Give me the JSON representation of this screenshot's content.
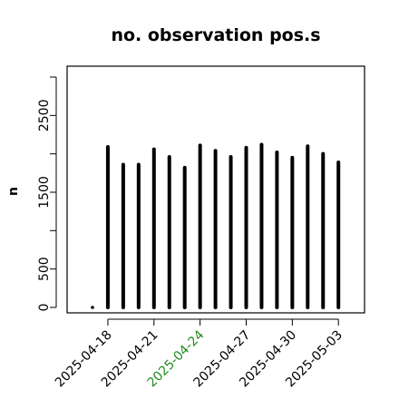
{
  "chart_data": {
    "type": "bar",
    "title": "no. observation pos.s",
    "xlabel": "",
    "ylabel": "n",
    "ylim": [
      0,
      3000
    ],
    "yticks": [
      0,
      500,
      1500,
      2500
    ],
    "x_ticks": [
      {
        "label": "2025-04-18",
        "color": "#000000"
      },
      {
        "label": "2025-04-21",
        "color": "#000000"
      },
      {
        "label": "2025-04-24",
        "color": "#228B22"
      },
      {
        "label": "2025-04-27",
        "color": "#000000"
      },
      {
        "label": "2025-04-30",
        "color": "#000000"
      },
      {
        "label": "2025-05-03",
        "color": "#000000"
      }
    ],
    "categories": [
      "2025-04-17",
      "2025-04-18",
      "2025-04-19",
      "2025-04-20",
      "2025-04-21",
      "2025-04-22",
      "2025-04-23",
      "2025-04-24",
      "2025-04-25",
      "2025-04-26",
      "2025-04-27",
      "2025-04-28",
      "2025-04-29",
      "2025-04-30",
      "2025-05-01",
      "2025-05-02",
      "2025-05-03"
    ],
    "values": [
      15,
      2090,
      1860,
      1860,
      2060,
      1960,
      1820,
      2110,
      2040,
      1960,
      2080,
      2120,
      2020,
      1950,
      2100,
      2000,
      1890
    ],
    "grid": false,
    "bar_color": "#000000"
  }
}
